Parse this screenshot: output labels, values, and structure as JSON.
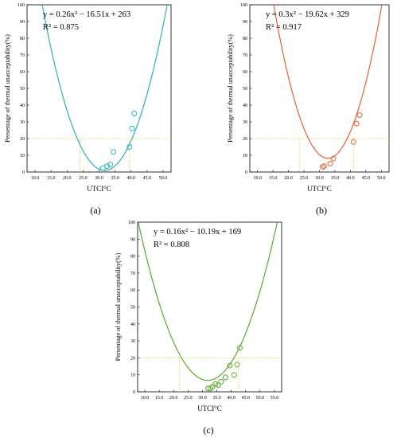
{
  "chart_data": [
    {
      "type": "scatter",
      "panel_label": "(a)",
      "color": "#29b5b5",
      "equation": "y = 0.26x² − 16.51x + 263",
      "r2": "R² = 0.875",
      "xlabel": "UTCI°C",
      "ylabel": "Persentage of thermal unacceptability(%)",
      "xlim": [
        7.5,
        52.5
      ],
      "ylim": [
        0,
        100
      ],
      "xticks": [
        "10.0",
        "15.0",
        "20.0",
        "25.0",
        "30.0",
        "35.0",
        "40.0",
        "45.0",
        "50.0"
      ],
      "yticks": [
        "0",
        "10",
        "20",
        "30",
        "40",
        "50",
        "60",
        "70",
        "80",
        "90",
        "100"
      ],
      "fit": {
        "a": 0.26,
        "b": -16.51,
        "c": 263
      },
      "threshold_y": 20,
      "threshold_x": [
        24.0,
        39.5
      ],
      "points": [
        {
          "x": 31.2,
          "y": 2.3
        },
        {
          "x": 32.5,
          "y": 3.5
        },
        {
          "x": 33.5,
          "y": 4.5
        },
        {
          "x": 34.5,
          "y": 12.0
        },
        {
          "x": 39.5,
          "y": 15.0
        },
        {
          "x": 40.3,
          "y": 26.0
        },
        {
          "x": 41.0,
          "y": 35.0
        }
      ]
    },
    {
      "type": "scatter",
      "panel_label": "(b)",
      "color": "#ef6033",
      "equation": "y = 0.3x² − 19.62x + 329",
      "r2": "R² = 0.917",
      "xlabel": "UTCI°C",
      "ylabel": "Persentage of thermal unacceptability(%)",
      "xlim": [
        7.5,
        52.5
      ],
      "ylim": [
        0,
        100
      ],
      "xticks": [
        "10.0",
        "15.0",
        "20.0",
        "25.0",
        "30.0",
        "35.0",
        "40.0",
        "45.0",
        "50.0"
      ],
      "yticks": [
        "0",
        "10",
        "20",
        "30",
        "40",
        "50",
        "60",
        "70",
        "80",
        "90",
        "100"
      ],
      "fit": {
        "a": 0.3,
        "b": -19.62,
        "c": 329
      },
      "threshold_y": 20,
      "threshold_x": [
        23.5,
        41.0
      ],
      "points": [
        {
          "x": 31.0,
          "y": 3.0
        },
        {
          "x": 31.5,
          "y": 3.5
        },
        {
          "x": 33.5,
          "y": 5.0
        },
        {
          "x": 34.5,
          "y": 8.0
        },
        {
          "x": 41.0,
          "y": 18.0
        },
        {
          "x": 42.0,
          "y": 29.0
        },
        {
          "x": 43.0,
          "y": 34.0
        }
      ]
    },
    {
      "type": "scatter",
      "panel_label": "(c)",
      "color": "#5aaa32",
      "equation": "y = 0.16x² − 10.19x + 169",
      "r2": "R² = 0.808",
      "xlabel": "UTCI°C",
      "ylabel": "Persentage of thermal unacceptability(%)",
      "xlim": [
        7.5,
        57.5
      ],
      "ylim": [
        0,
        100
      ],
      "xticks": [
        "10.0",
        "15.0",
        "20.0",
        "25.0",
        "30.0",
        "35.0",
        "40.0",
        "45.0",
        "50.0",
        "55.0"
      ],
      "yticks": [
        "0",
        "10",
        "20",
        "30",
        "40",
        "50",
        "60",
        "70",
        "80",
        "90",
        "100"
      ],
      "fit": {
        "a": 0.16,
        "b": -10.19,
        "c": 169
      },
      "threshold_y": 20,
      "threshold_x": [
        22.0,
        42.5
      ],
      "points": [
        {
          "x": 32.0,
          "y": 2.0
        },
        {
          "x": 32.8,
          "y": 2.0
        },
        {
          "x": 33.5,
          "y": 3.0
        },
        {
          "x": 34.5,
          "y": 4.5
        },
        {
          "x": 35.5,
          "y": 4.0
        },
        {
          "x": 36.5,
          "y": 6.0
        },
        {
          "x": 38.0,
          "y": 8.5
        },
        {
          "x": 39.5,
          "y": 15.5
        },
        {
          "x": 41.0,
          "y": 10.0
        },
        {
          "x": 42.0,
          "y": 16.0
        },
        {
          "x": 43.0,
          "y": 26.0
        }
      ]
    }
  ]
}
